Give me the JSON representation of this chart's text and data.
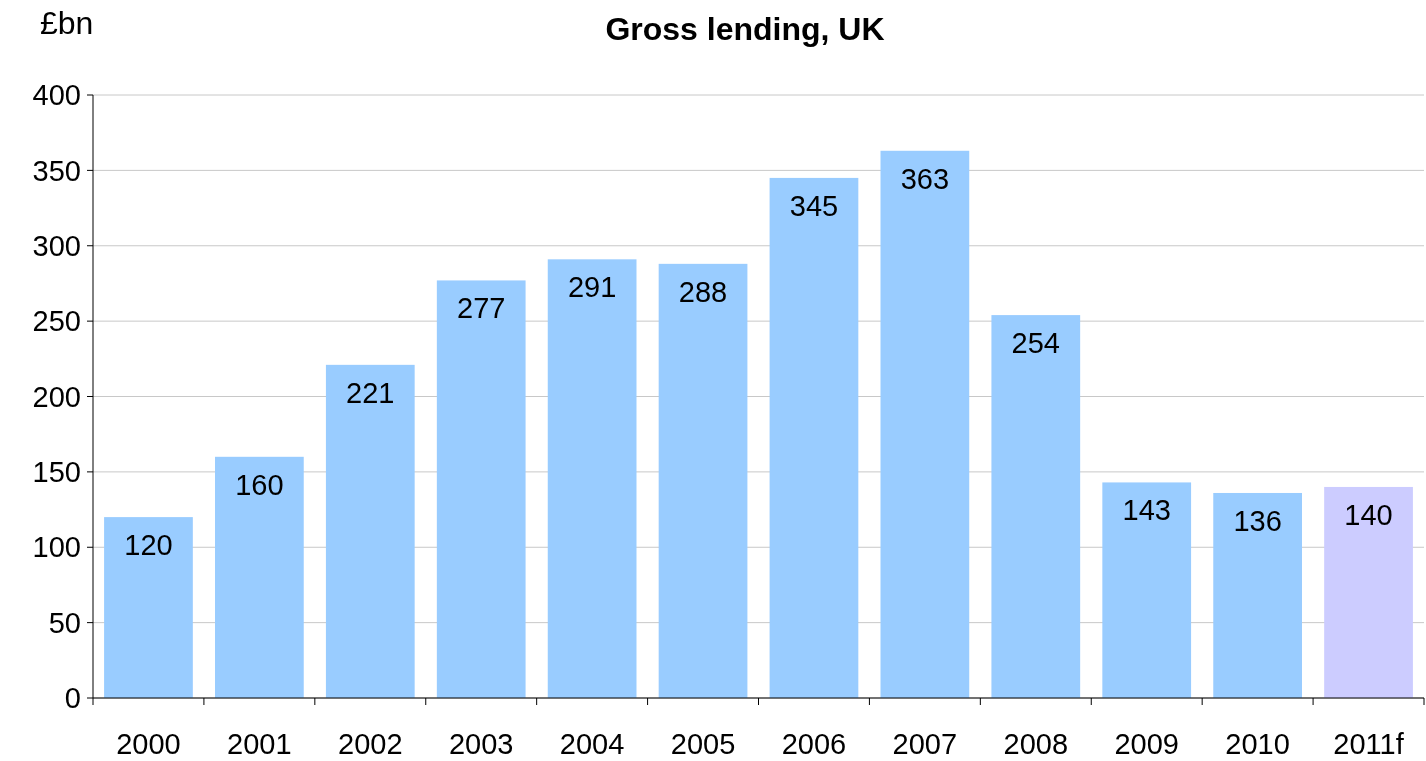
{
  "chart_data": {
    "type": "bar",
    "title": "Gross lending, UK",
    "ylabel": "£bn",
    "categories": [
      "2000",
      "2001",
      "2002",
      "2003",
      "2004",
      "2005",
      "2006",
      "2007",
      "2008",
      "2009",
      "2010",
      "2011f"
    ],
    "values": [
      120,
      160,
      221,
      277,
      291,
      288,
      345,
      363,
      254,
      143,
      136,
      140
    ],
    "colors": [
      "#99ccff",
      "#99ccff",
      "#99ccff",
      "#99ccff",
      "#99ccff",
      "#99ccff",
      "#99ccff",
      "#99ccff",
      "#99ccff",
      "#99ccff",
      "#99ccff",
      "#ccccff"
    ],
    "ylim": [
      0,
      400
    ],
    "yticks": [
      0,
      50,
      100,
      150,
      200,
      250,
      300,
      350,
      400
    ],
    "grid": "y",
    "data_labels": true
  }
}
